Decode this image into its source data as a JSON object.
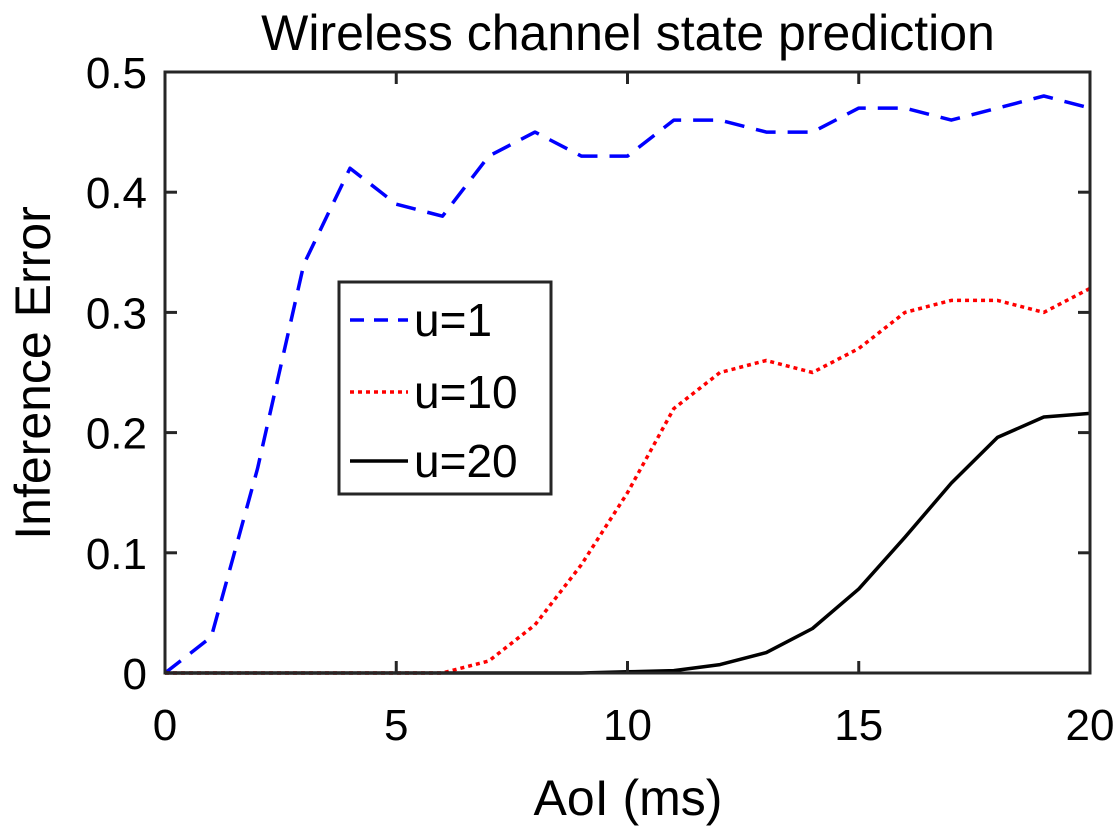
{
  "chart_data": {
    "type": "line",
    "title": "Wireless channel state prediction",
    "xlabel": "AoI (ms)",
    "ylabel": "Inference Error",
    "xlim": [
      0,
      20
    ],
    "ylim": [
      0,
      0.5
    ],
    "xticks": [
      0,
      5,
      10,
      15,
      20
    ],
    "xtick_labels": [
      "0",
      "5",
      "10",
      "15",
      "20"
    ],
    "yticks": [
      0,
      0.1,
      0.2,
      0.3,
      0.4,
      0.5
    ],
    "ytick_labels": [
      "0",
      "0.1",
      "0.2",
      "0.3",
      "0.4",
      "0.5"
    ],
    "grid": false,
    "legend_position": "center-left",
    "x": [
      0,
      1,
      2,
      3,
      4,
      5,
      6,
      7,
      8,
      9,
      10,
      11,
      12,
      13,
      14,
      15,
      16,
      17,
      18,
      19,
      20
    ],
    "series": [
      {
        "name": "u=1",
        "color": "#0000ff",
        "style": "dashed",
        "values": [
          0,
          0.03,
          0.17,
          0.34,
          0.42,
          0.39,
          0.38,
          0.43,
          0.45,
          0.43,
          0.43,
          0.46,
          0.46,
          0.45,
          0.45,
          0.47,
          0.47,
          0.46,
          0.47,
          0.48,
          0.47
        ]
      },
      {
        "name": "u=10",
        "color": "#ff0000",
        "style": "dotted",
        "values": [
          0,
          0,
          0,
          0,
          0,
          0,
          0,
          0.01,
          0.04,
          0.09,
          0.15,
          0.22,
          0.25,
          0.26,
          0.25,
          0.27,
          0.3,
          0.31,
          0.31,
          0.3,
          0.32
        ]
      },
      {
        "name": "u=20",
        "color": "#000000",
        "style": "solid",
        "values": [
          0,
          0,
          0,
          0,
          0,
          0,
          0,
          0,
          0,
          0,
          0.001,
          0.002,
          0.007,
          0.017,
          0.037,
          0.07,
          0.113,
          0.158,
          0.196,
          0.213,
          0.216
        ]
      }
    ]
  }
}
